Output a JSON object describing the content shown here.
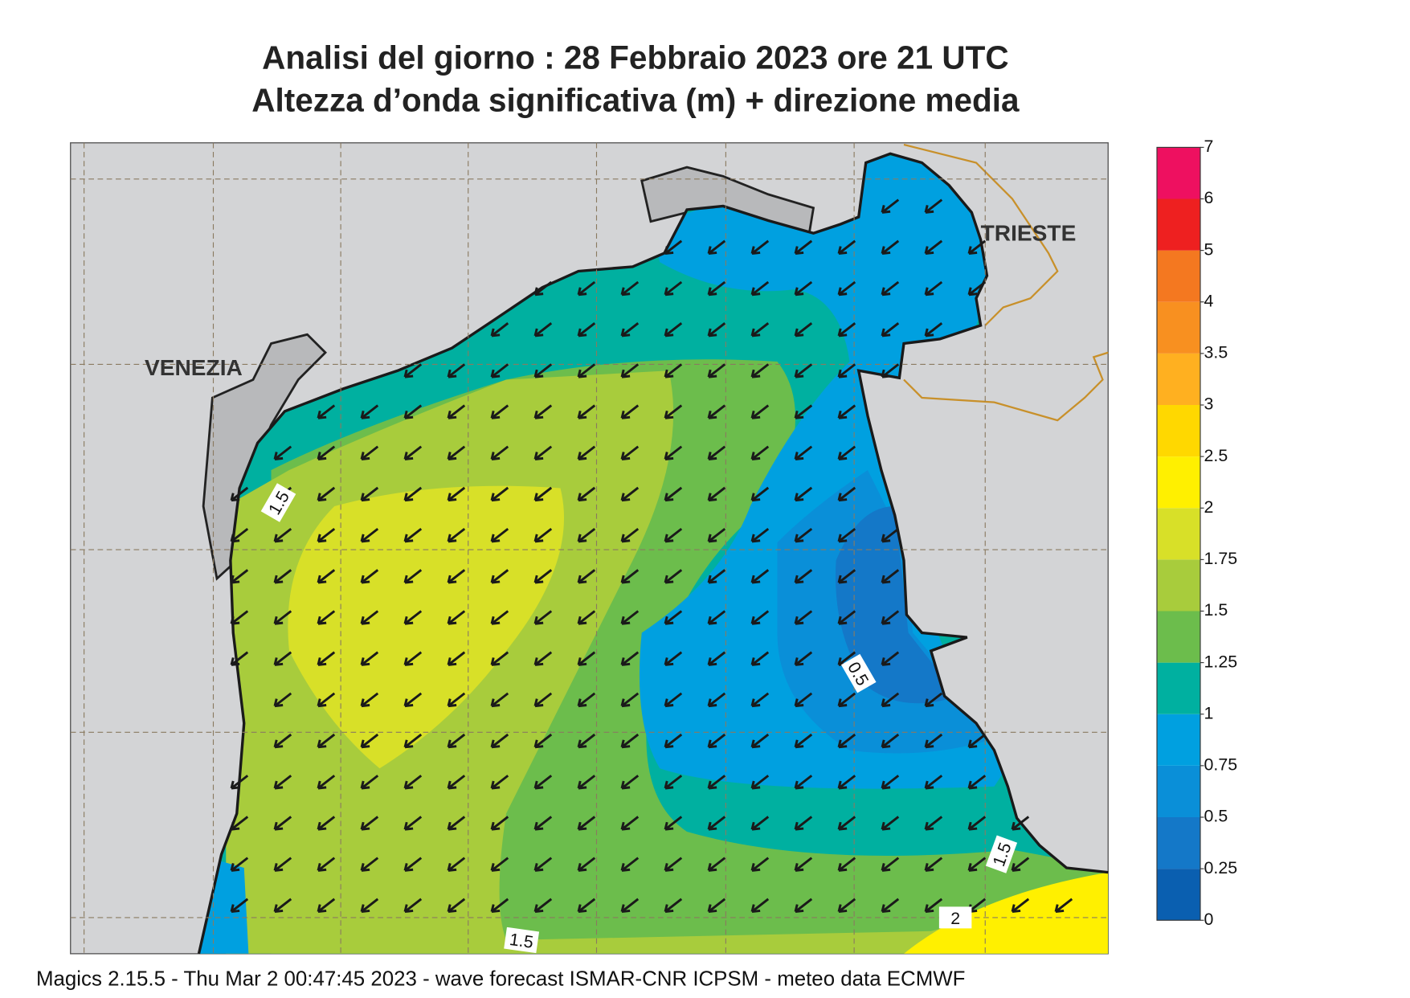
{
  "title": "Analisi del giorno :  28  Febbraio 2023   ore 21 UTC",
  "subtitle": "Altezza d’onda significativa (m) + direzione media",
  "places": [
    "VENEZIA",
    "TRIESTE"
  ],
  "contour_labels": [
    "1.5",
    "0.5",
    "1.5",
    "2",
    "1.5"
  ],
  "colorbar": {
    "ticks": [
      0,
      0.25,
      0.5,
      0.75,
      1,
      1.25,
      1.5,
      1.75,
      2,
      2.5,
      3,
      3.5,
      4,
      5,
      6,
      7
    ],
    "colors": [
      "#0a5fb0",
      "#1478c8",
      "#0a8fd8",
      "#00a0e0",
      "#00b0a0",
      "#6cbd4c",
      "#a8cc3c",
      "#d8e028",
      "#fff000",
      "#ffd800",
      "#ffb020",
      "#f89020",
      "#f47820",
      "#ee2020",
      "#ee1060"
    ]
  },
  "footer": "Magics 2.15.5 - Thu Mar  2 00:47:45 2023 - wave forecast  ISMAR-CNR  ICPSM - meteo data    ECMWF"
}
